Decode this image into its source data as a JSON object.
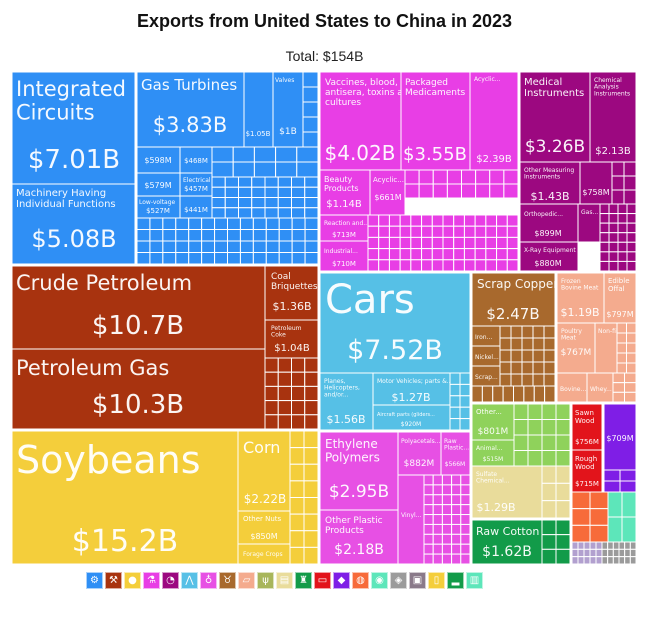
{
  "chart_data": {
    "type": "treemap",
    "title": "Exports from United States to China in 2023",
    "subtitle": "Total: $154B",
    "total_billions": 154,
    "sections": [
      {
        "name": "Machinery",
        "color": "#2f8ff5",
        "icon": "gear-icon",
        "items": [
          {
            "label": "Integrated Circuits",
            "value": "$7.01B"
          },
          {
            "label": "Machinery Having Individual Functions",
            "value": "$5.08B"
          },
          {
            "label": "Gas Turbines",
            "value": "$3.83B"
          },
          {
            "label": "Valves",
            "value": "$1B"
          },
          {
            "label": "",
            "value": "$598M"
          },
          {
            "label": "",
            "value": "$468M"
          },
          {
            "label": "",
            "value": "$579M"
          },
          {
            "label": "Electrical",
            "value": "$457M"
          },
          {
            "label": "Low-voltage",
            "value": "$527M"
          },
          {
            "label": "",
            "value": "$441M"
          },
          {
            "label": "",
            "value": "$1.05B"
          }
        ]
      },
      {
        "name": "Chemical Products",
        "color": "#e83ee5",
        "icon": "flask-icon",
        "items": [
          {
            "label": "Vaccines, blood, antisera, toxins and cultures",
            "value": "$4.02B"
          },
          {
            "label": "Packaged Medicaments",
            "value": "$3.55B"
          },
          {
            "label": "Acyclic...",
            "value": "$2.39B"
          },
          {
            "label": "Beauty Products",
            "value": "$1.14B"
          },
          {
            "label": "Acyclic...",
            "value": "$661M"
          },
          {
            "label": "Reaction and...",
            "value": "$713M"
          },
          {
            "label": "Industrial...",
            "value": "$710M"
          }
        ]
      },
      {
        "name": "Instruments",
        "color": "#9c0880",
        "icon": "gauge-icon",
        "items": [
          {
            "label": "Medical Instruments",
            "value": "$3.26B"
          },
          {
            "label": "Chemical Analysis Instruments",
            "value": "$2.13B"
          },
          {
            "label": "Other Measuring Instruments",
            "value": "$1.43B"
          },
          {
            "label": "",
            "value": "$758M"
          },
          {
            "label": "Orthopedic...",
            "value": "$899M"
          },
          {
            "label": "Gas...",
            "value": ""
          },
          {
            "label": "X-Ray Equipment",
            "value": "$880M"
          }
        ]
      },
      {
        "name": "Mineral Products",
        "color": "#a8330f",
        "icon": "pickaxe-icon",
        "items": [
          {
            "label": "Crude Petroleum",
            "value": "$10.7B"
          },
          {
            "label": "Petroleum Gas",
            "value": "$10.3B"
          },
          {
            "label": "Coal Briquettes",
            "value": "$1.36B"
          },
          {
            "label": "Petroleum Coke",
            "value": "$1.04B"
          }
        ]
      },
      {
        "name": "Transportation",
        "color": "#56c0e6",
        "icon": "car-icon",
        "items": [
          {
            "label": "Cars",
            "value": "$7.52B"
          },
          {
            "label": "Planes, Helicopters, and/or...",
            "value": "$1.56B"
          },
          {
            "label": "Motor Vehicles; parts &...",
            "value": "$1.27B"
          },
          {
            "label": "Aircraft parts (gliders...",
            "value": "$920M"
          }
        ]
      },
      {
        "name": "Metals",
        "color": "#a8692d",
        "icon": "ingot-icon",
        "items": [
          {
            "label": "Scrap Copper",
            "value": "$2.47B"
          },
          {
            "label": "Iron...",
            "value": ""
          },
          {
            "label": "Nickel...",
            "value": ""
          },
          {
            "label": "Scrap...",
            "value": ""
          }
        ]
      },
      {
        "name": "Animal Products",
        "color": "#f4ab8e",
        "icon": "cow-icon",
        "items": [
          {
            "label": "Frozen Bovine Meat",
            "value": "$1.19B"
          },
          {
            "label": "Edible Offal",
            "value": "$797M"
          },
          {
            "label": "Poultry Meat",
            "value": "$767M"
          },
          {
            "label": "Non-fillet...",
            "value": ""
          },
          {
            "label": "Bovine...",
            "value": ""
          },
          {
            "label": "Whey...",
            "value": ""
          }
        ]
      },
      {
        "name": "Vegetable Products",
        "color": "#f4ce3b",
        "icon": "wheat-icon",
        "items": [
          {
            "label": "Soybeans",
            "value": "$15.2B"
          },
          {
            "label": "Corn",
            "value": "$2.22B"
          },
          {
            "label": "Other Nuts",
            "value": "$850M"
          },
          {
            "label": "Forage Crops",
            "value": ""
          }
        ]
      },
      {
        "name": "Plastics and Rubbers",
        "color": "#e750e4",
        "icon": "bottle-icon",
        "items": [
          {
            "label": "Ethylene Polymers",
            "value": "$2.95B"
          },
          {
            "label": "Other Plastic Products",
            "value": "$2.18B"
          },
          {
            "label": "Polyacetals...",
            "value": "$882M"
          },
          {
            "label": "Raw Plastic...",
            "value": "$566M"
          },
          {
            "label": "Vinyl...",
            "value": ""
          }
        ]
      },
      {
        "name": "Foodstuffs",
        "color": "#8fd25b",
        "icon": "can-icon",
        "items": [
          {
            "label": "Other...",
            "value": "$801M"
          },
          {
            "label": "Animal...",
            "value": "$515M"
          }
        ]
      },
      {
        "name": "Paper Goods",
        "color": "#e9dc9b",
        "icon": "paper-icon",
        "items": [
          {
            "label": "Sulfate Chemical...",
            "value": "$1.29B"
          }
        ]
      },
      {
        "name": "Textiles",
        "color": "#129b49",
        "icon": "shirt-icon",
        "items": [
          {
            "label": "Raw Cotton",
            "value": "$1.62B"
          }
        ]
      },
      {
        "name": "Wood Products",
        "color": "#e2141b",
        "icon": "tree-icon",
        "items": [
          {
            "label": "Sawn Wood",
            "value": "$756M"
          },
          {
            "label": "Rough Wood",
            "value": "$715M"
          }
        ]
      },
      {
        "name": "Precious Metals",
        "color": "#7f1ee6",
        "icon": "diamond-icon",
        "items": [
          {
            "label": "",
            "value": "$709M"
          }
        ]
      },
      {
        "name": "Stone And Glass",
        "color": "#f76b3a",
        "icon": "stone-icon",
        "items": []
      },
      {
        "name": "Miscellaneous",
        "color": "#5de6ba",
        "icon": "box-icon",
        "items": []
      },
      {
        "name": "Arts and Antiques",
        "color": "#b2a0cf",
        "icon": "frame-icon",
        "items": []
      },
      {
        "name": "Weapons",
        "color": "#9b9b9b",
        "icon": "helmet-icon",
        "items": []
      }
    ],
    "legend_icons": [
      {
        "icon": "gear-icon",
        "glyph": "⚙",
        "color": "#2f8ff5"
      },
      {
        "icon": "pickaxe-icon",
        "glyph": "⚒",
        "color": "#a8330f"
      },
      {
        "icon": "orange-icon",
        "glyph": "●",
        "color": "#f4ce3b"
      },
      {
        "icon": "flask-icon",
        "glyph": "⚗",
        "color": "#e83ee5"
      },
      {
        "icon": "gauge-icon",
        "glyph": "◔",
        "color": "#9c0880"
      },
      {
        "icon": "road-icon",
        "glyph": "⋀",
        "color": "#56c0e6"
      },
      {
        "icon": "bottle-icon",
        "glyph": "♁",
        "color": "#e750e4"
      },
      {
        "icon": "cow-icon",
        "glyph": "♉",
        "color": "#a8692d"
      },
      {
        "icon": "ingot-icon",
        "glyph": "▱",
        "color": "#f4ab8e"
      },
      {
        "icon": "wheat-icon",
        "glyph": "ψ",
        "color": "#a8b65b"
      },
      {
        "icon": "paper-icon",
        "glyph": "▤",
        "color": "#e9dc9b"
      },
      {
        "icon": "shirt-icon",
        "glyph": "♜",
        "color": "#129b49"
      },
      {
        "icon": "tree-icon",
        "glyph": "▭",
        "color": "#e2141b"
      },
      {
        "icon": "diamond-icon",
        "glyph": "◆",
        "color": "#7f1ee6"
      },
      {
        "icon": "stone-icon",
        "glyph": "◍",
        "color": "#f76b3a"
      },
      {
        "icon": "box-icon",
        "glyph": "◉",
        "color": "#5de6ba"
      },
      {
        "icon": "cube-icon",
        "glyph": "◈",
        "color": "#9b9b9b"
      },
      {
        "icon": "frame-icon",
        "glyph": "▣",
        "color": "#8a7a8a"
      },
      {
        "icon": "can-icon",
        "glyph": "▯",
        "color": "#f4ce3b"
      },
      {
        "icon": "shoe-icon",
        "glyph": "▂",
        "color": "#129b49"
      },
      {
        "icon": "brick-icon",
        "glyph": "▥",
        "color": "#5de6ba"
      }
    ]
  }
}
